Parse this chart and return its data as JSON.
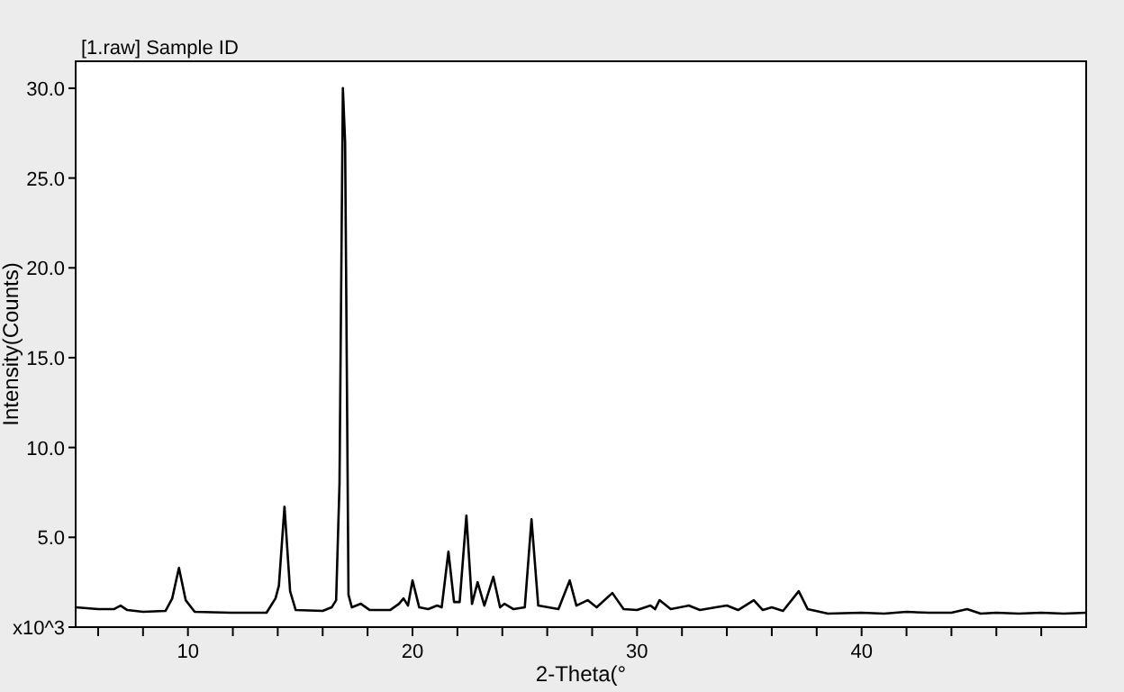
{
  "chart_data": {
    "type": "line",
    "title": "[1.raw] Sample ID",
    "xlabel": "2-Theta(°",
    "ylabel": "Intensity(Counts)",
    "xlim": [
      5,
      50
    ],
    "ylim": [
      0,
      31.5
    ],
    "xticks": [
      {
        "value": 6,
        "label": null
      },
      {
        "value": 8,
        "label": null
      },
      10,
      {
        "value": 12,
        "label": null
      },
      {
        "value": 14,
        "label": null
      },
      {
        "value": 16,
        "label": null
      },
      {
        "value": 18,
        "label": null
      },
      20,
      {
        "value": 22,
        "label": null
      },
      {
        "value": 24,
        "label": null
      },
      {
        "value": 26,
        "label": null
      },
      {
        "value": 28,
        "label": null
      },
      30,
      {
        "value": 32,
        "label": null
      },
      {
        "value": 34,
        "label": null
      },
      {
        "value": 36,
        "label": null
      },
      {
        "value": 38,
        "label": null
      },
      40,
      {
        "value": 42,
        "label": null
      },
      {
        "value": 44,
        "label": null
      },
      {
        "value": 46,
        "label": null
      },
      {
        "value": 48,
        "label": null
      }
    ],
    "yticks": [
      {
        "value": 0,
        "label": "x10^3"
      },
      {
        "value": 5,
        "label": "5.0"
      },
      {
        "value": 10,
        "label": "10.0"
      },
      {
        "value": 15,
        "label": "15.0"
      },
      {
        "value": 20,
        "label": "20.0"
      },
      {
        "value": 25,
        "label": "25.0"
      },
      {
        "value": 30,
        "label": "30.0"
      }
    ],
    "grid": false,
    "marker": "none",
    "line_style": "solid",
    "series": [
      {
        "color": "#000000",
        "x": [
          5,
          6,
          6.7,
          7,
          7.3,
          8,
          9,
          9.3,
          9.6,
          9.9,
          10.3,
          12,
          13.5,
          13.9,
          14.05,
          14.3,
          14.55,
          14.8,
          16,
          16.4,
          16.6,
          16.75,
          16.9,
          17.0,
          17.15,
          17.3,
          17.7,
          18.1,
          19,
          19.4,
          19.6,
          19.8,
          20,
          20.3,
          20.7,
          21.1,
          21.3,
          21.6,
          21.85,
          22.1,
          22.4,
          22.65,
          22.9,
          23.2,
          23.6,
          23.9,
          24.1,
          24.5,
          25,
          25.3,
          25.6,
          26.5,
          27,
          27.3,
          27.8,
          28.2,
          28.9,
          29.4,
          30,
          30.6,
          30.8,
          31,
          31.5,
          32.3,
          32.8,
          33.5,
          34,
          34.5,
          35.2,
          35.6,
          36,
          36.5,
          37.2,
          37.6,
          38.5,
          40,
          41,
          42,
          43,
          44,
          44.7,
          45.3,
          46,
          47,
          48,
          49,
          50
        ],
        "values": [
          1.1,
          1.0,
          1.0,
          1.2,
          0.95,
          0.85,
          0.9,
          1.6,
          3.3,
          1.5,
          0.85,
          0.8,
          0.8,
          1.6,
          2.3,
          6.7,
          2.0,
          0.95,
          0.9,
          1.1,
          1.5,
          8,
          30,
          27,
          1.8,
          1.1,
          1.3,
          0.95,
          0.95,
          1.3,
          1.6,
          1.2,
          2.6,
          1.1,
          1.0,
          1.2,
          1.1,
          4.2,
          1.4,
          1.4,
          6.2,
          1.3,
          2.5,
          1.2,
          2.8,
          1.1,
          1.3,
          1.0,
          1.1,
          6.0,
          1.2,
          1.0,
          2.6,
          1.2,
          1.5,
          1.1,
          1.9,
          1.0,
          0.95,
          1.2,
          1.0,
          1.5,
          1.0,
          1.2,
          0.95,
          1.1,
          1.2,
          0.95,
          1.5,
          0.95,
          1.1,
          0.9,
          2.0,
          1.0,
          0.75,
          0.8,
          0.75,
          0.85,
          0.8,
          0.8,
          1.0,
          0.75,
          0.8,
          0.75,
          0.8,
          0.75,
          0.8
        ]
      }
    ]
  }
}
